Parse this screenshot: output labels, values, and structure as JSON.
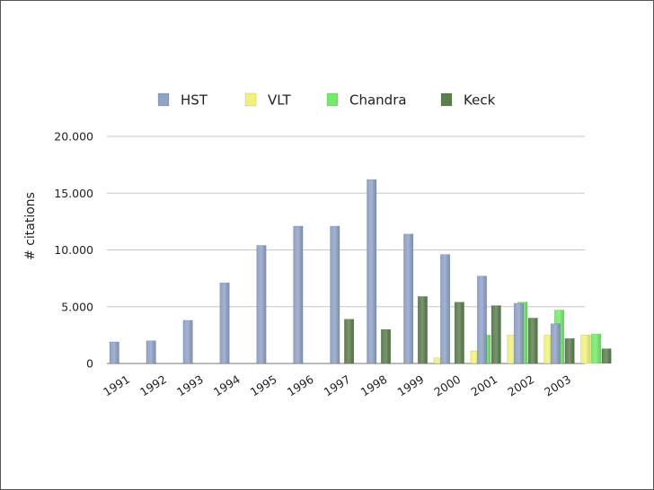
{
  "chart_data": {
    "type": "bar",
    "title": "",
    "xlabel": "",
    "ylabel": "# citations",
    "ylim": [
      0,
      20000
    ],
    "yticks": [
      0,
      5000,
      10000,
      15000,
      20000
    ],
    "ytick_labels": [
      "0",
      "5.000",
      "10.000",
      "15.000",
      "20.000"
    ],
    "grid": true,
    "legend_position": "top",
    "categories": [
      "1991",
      "1992",
      "1993",
      "1994",
      "1995",
      "1996",
      "1997",
      "1998",
      "1999",
      "2000",
      "2001",
      "2002",
      "2003"
    ],
    "series": [
      {
        "name": "HST",
        "color": "#8fa3c7",
        "values": [
          1900,
          2000,
          3800,
          7100,
          10400,
          12100,
          12100,
          16200,
          11400,
          9600,
          7700,
          5300,
          3500
        ]
      },
      {
        "name": "VLT",
        "color": "#f2f27a",
        "values": [
          0,
          0,
          0,
          0,
          0,
          0,
          0,
          0,
          500,
          1100,
          2500,
          2500,
          2500
        ]
      },
      {
        "name": "Chandra",
        "color": "#73ec6b",
        "values": [
          0,
          0,
          0,
          0,
          0,
          0,
          0,
          0,
          0,
          2500,
          5400,
          4700,
          2600
        ]
      },
      {
        "name": "Keck",
        "color": "#5c7f4e",
        "values": [
          0,
          0,
          0,
          0,
          0,
          3900,
          3000,
          5900,
          5400,
          5100,
          4000,
          2200,
          1300
        ]
      }
    ]
  }
}
